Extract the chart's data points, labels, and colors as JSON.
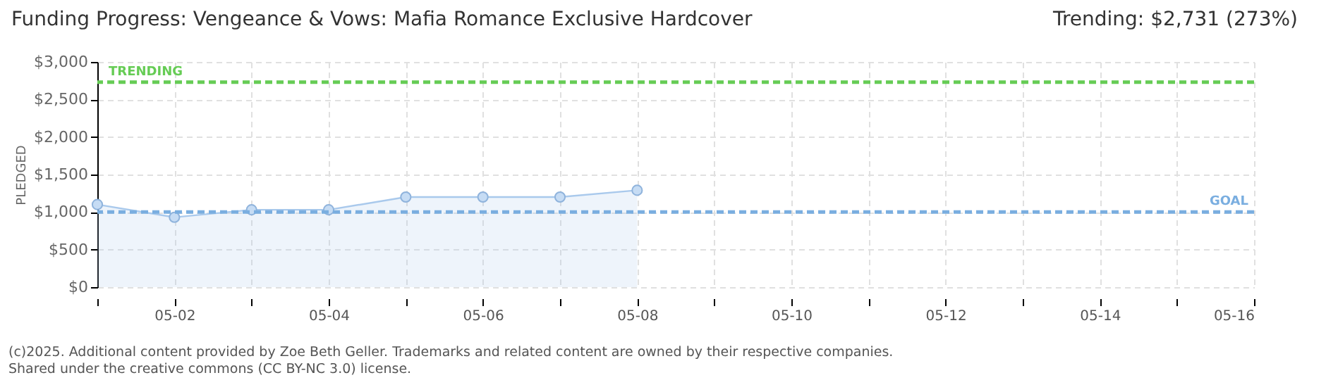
{
  "chart_data": {
    "type": "area",
    "title": "Funding Progress: Vengeance & Vows: Mafia Romance Exclusive Hardcover",
    "subtitle": "Trending: $2,731 (273%)",
    "ylabel": "PLEDGED",
    "x": [
      "--05-01",
      "--05-02",
      "--05-03",
      "--05-04",
      "--05-05",
      "--05-06",
      "--05-07",
      "--05-08"
    ],
    "series": [
      {
        "color": "#a9c9ec",
        "values": [
          1100,
          930,
          1030,
          1030,
          1200,
          1200,
          1200,
          1290
        ]
      }
    ],
    "marker": "circle",
    "grid": true,
    "xlim": [
      "--05-01",
      "--05-16"
    ],
    "xticks": [
      {
        "value": "--05-01",
        "label": null
      },
      {
        "value": "--05-02",
        "label": "05-02"
      },
      {
        "value": "--05-03",
        "label": null
      },
      {
        "value": "--05-04",
        "label": "05-04"
      },
      {
        "value": "--05-05",
        "label": null
      },
      {
        "value": "--05-06",
        "label": "05-06"
      },
      {
        "value": "--05-07",
        "label": null
      },
      {
        "value": "--05-08",
        "label": "05-08"
      },
      {
        "value": "--05-09",
        "label": null
      },
      {
        "value": "--05-10",
        "label": "05-10"
      },
      {
        "value": "--05-11",
        "label": null
      },
      {
        "value": "--05-12",
        "label": "05-12"
      },
      {
        "value": "--05-13",
        "label": null
      },
      {
        "value": "--05-14",
        "label": "05-14"
      },
      {
        "value": "--05-15",
        "label": null
      },
      {
        "value": "--05-16",
        "label": "05-16"
      }
    ],
    "ylim": [
      0,
      3000
    ],
    "yticks": [
      {
        "value": 0,
        "label": "$0"
      },
      {
        "value": 500,
        "label": "$500"
      },
      {
        "value": 1000,
        "label": "$1,000"
      },
      {
        "value": 1500,
        "label": "$1,500"
      },
      {
        "value": 2000,
        "label": "$2,000"
      },
      {
        "value": 2500,
        "label": "$2,500"
      },
      {
        "value": 3000,
        "label": "$3,000"
      }
    ],
    "ref_lines": [
      {
        "axis": "y",
        "value": 2731,
        "label": "TRENDING",
        "color": "#66cc55",
        "line_style": "dashed"
      },
      {
        "axis": "y",
        "value": 1000,
        "label": "GOAL",
        "color": "#7aaee0",
        "line_style": "dashed"
      }
    ],
    "annotations": [
      "(c)2025. Additional content provided by Zoe Beth Geller. Trademarks and related content are owned by their respective companies.",
      "Shared under the creative commons (CC BY-NC 3.0) license."
    ]
  }
}
